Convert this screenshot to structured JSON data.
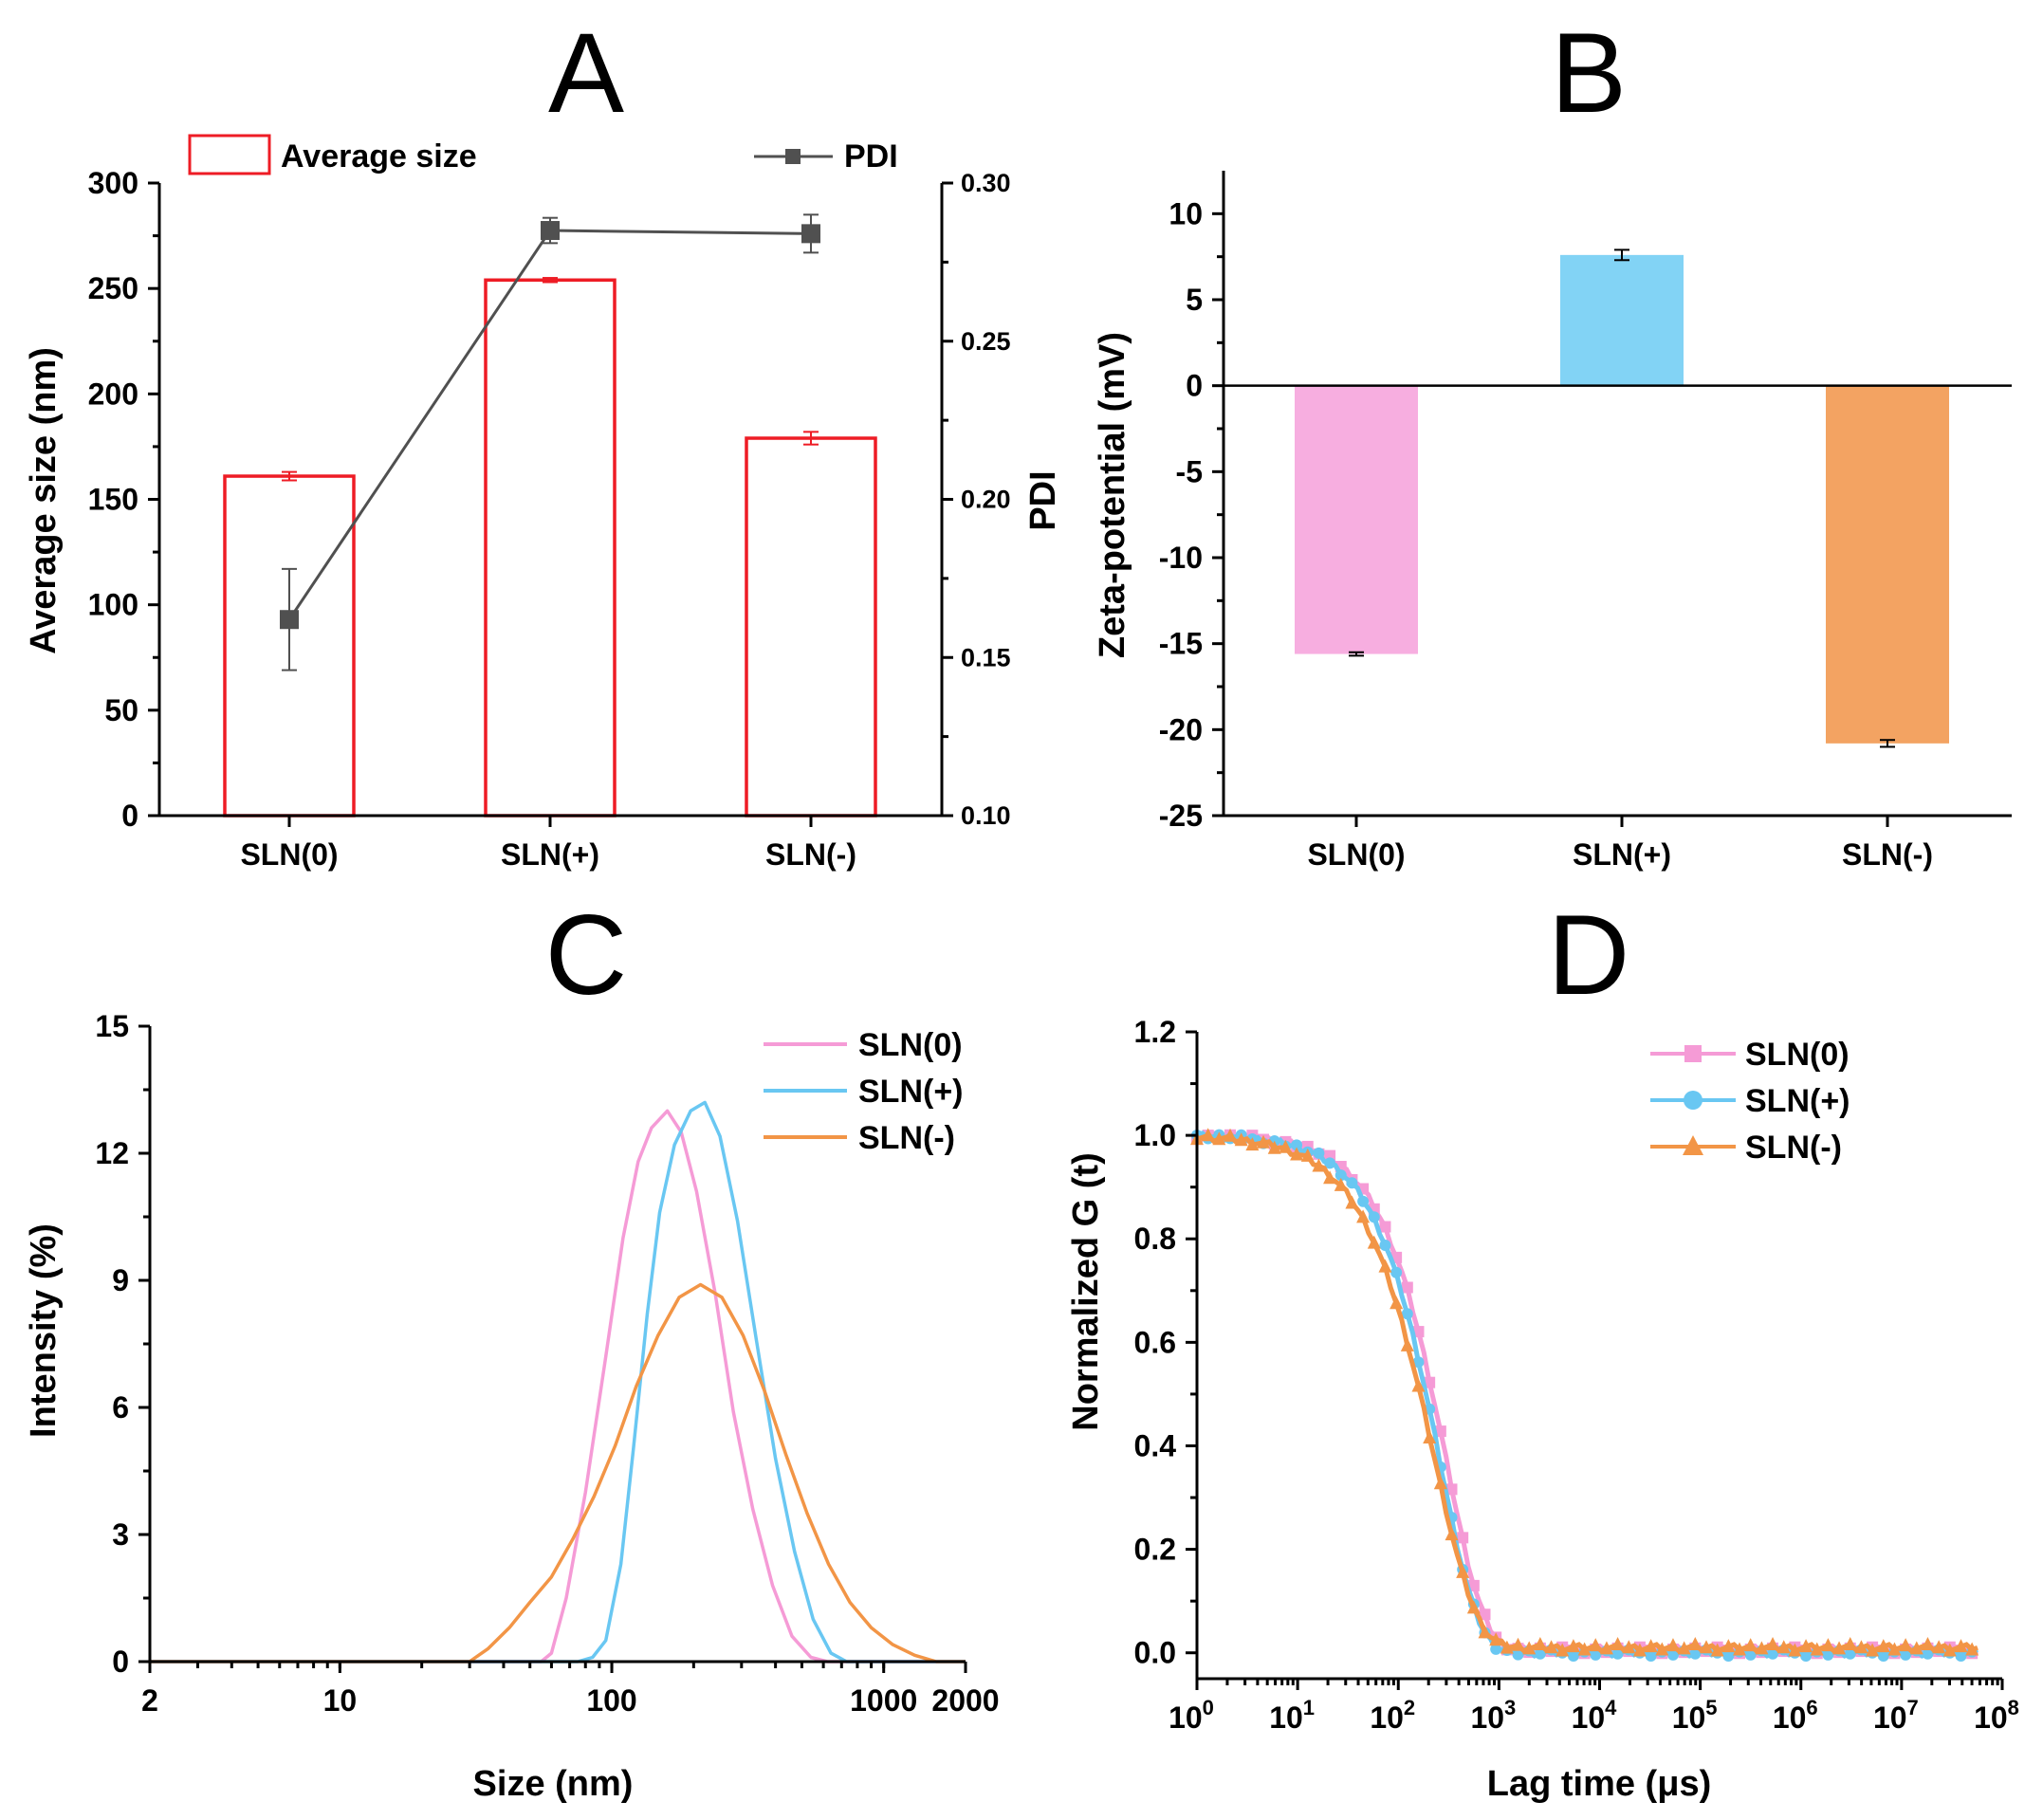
{
  "figure": {
    "panel_letters": [
      "A",
      "B",
      "C",
      "D"
    ]
  },
  "chart_data": [
    {
      "panel": "A",
      "type": "bar",
      "categories": [
        "SLN(0)",
        "SLN(+)",
        "SLN(-)"
      ],
      "bar_series": {
        "name": "Average size",
        "values": [
          161,
          254,
          179
        ],
        "errors": [
          2,
          1,
          3
        ],
        "color": "#ee1c25"
      },
      "line_series": {
        "name": "PDI",
        "values": [
          0.162,
          0.285,
          0.284
        ],
        "errors": [
          0.016,
          0.004,
          0.006
        ],
        "color": "#505050"
      },
      "ylabel": "Average size (nm)",
      "ylim": [
        0,
        300
      ],
      "yticks": [
        0,
        50,
        100,
        150,
        200,
        250,
        300
      ],
      "y2label": "PDI",
      "y2lim": [
        0.1,
        0.3
      ],
      "y2ticks": [
        "0.10",
        "0.15",
        "0.20",
        "0.25",
        "0.30"
      ],
      "legend": [
        "Average size",
        "PDI"
      ]
    },
    {
      "panel": "B",
      "type": "bar",
      "categories": [
        "SLN(0)",
        "SLN(+)",
        "SLN(-)"
      ],
      "values": [
        -15.6,
        7.6,
        -20.8
      ],
      "errors": [
        0.1,
        0.3,
        0.2
      ],
      "colors": [
        "#f7aee0",
        "#82d3f5",
        "#f3a362"
      ],
      "ylabel": "Zeta-potential (mV)",
      "ylim": [
        -25,
        12.5
      ],
      "yticks": [
        10,
        5,
        0,
        -5,
        -10,
        -15,
        -20,
        -25
      ]
    },
    {
      "panel": "C",
      "type": "line",
      "xscale": "log",
      "xlim": [
        2,
        2000
      ],
      "xticks": [
        2,
        10,
        100,
        1000,
        2000
      ],
      "xticklabels": [
        "2",
        "10",
        "100",
        "1000",
        "2000"
      ],
      "ylim": [
        0,
        15
      ],
      "yticks": [
        0,
        3,
        6,
        9,
        12,
        15
      ],
      "xlabel": "Size (nm)",
      "ylabel": "Intensity (%)",
      "series": [
        {
          "name": "SLN(0)",
          "color": "#f59bd6",
          "x": [
            2,
            55,
            60,
            68,
            80,
            95,
            110,
            125,
            140,
            160,
            180,
            205,
            240,
            280,
            330,
            390,
            460,
            540,
            620,
            2000
          ],
          "values": [
            0,
            0,
            0.2,
            1.5,
            4.0,
            7.2,
            10.0,
            11.8,
            12.6,
            13.0,
            12.5,
            11.1,
            8.7,
            5.9,
            3.6,
            1.8,
            0.6,
            0.1,
            0,
            0
          ]
        },
        {
          "name": "SLN(+)",
          "color": "#69c7f2",
          "x": [
            2,
            75,
            85,
            95,
            108,
            120,
            135,
            150,
            170,
            195,
            220,
            250,
            290,
            340,
            400,
            470,
            550,
            640,
            730,
            2000
          ],
          "values": [
            0,
            0,
            0.1,
            0.5,
            2.3,
            5.0,
            8.2,
            10.6,
            12.2,
            13.0,
            13.2,
            12.4,
            10.4,
            7.6,
            4.8,
            2.6,
            1.0,
            0.2,
            0,
            0
          ]
        },
        {
          "name": "SLN(-)",
          "color": "#f29546",
          "x": [
            2,
            30,
            35,
            42,
            50,
            60,
            72,
            86,
            103,
            123,
            148,
            177,
            212,
            254,
            304,
            364,
            436,
            523,
            627,
            751,
            900,
            1080,
            1300,
            1560,
            2000
          ],
          "values": [
            0,
            0,
            0.3,
            0.8,
            1.4,
            2.0,
            2.9,
            3.9,
            5.1,
            6.5,
            7.7,
            8.6,
            8.9,
            8.6,
            7.7,
            6.4,
            4.9,
            3.5,
            2.3,
            1.4,
            0.8,
            0.4,
            0.15,
            0,
            0
          ]
        }
      ],
      "legend": [
        "SLN(0)",
        "SLN(+)",
        "SLN(-)"
      ]
    },
    {
      "panel": "D",
      "type": "scatter",
      "xscale": "log",
      "xlim": [
        1,
        100000000
      ],
      "xtick_exponents": [
        0,
        1,
        2,
        3,
        4,
        5,
        6,
        7,
        8
      ],
      "xtick_base": "10",
      "ylim": [
        -0.05,
        1.2
      ],
      "yticks": [
        "0.0",
        "0.2",
        "0.4",
        "0.6",
        "0.8",
        "1.0",
        "1.2"
      ],
      "xlabel": "Lag time (μs)",
      "ylabel": "Normalized G (t)",
      "series": [
        {
          "name": "SLN(0)",
          "color": "#f59bd6",
          "marker": "square",
          "tau": 300,
          "beta": 1.15,
          "baseline": 0.005
        },
        {
          "name": "SLN(+)",
          "color": "#69c7f2",
          "marker": "circle",
          "tau": 260,
          "beta": 1.15,
          "baseline": 0.0
        },
        {
          "name": "SLN(-)",
          "color": "#f29546",
          "marker": "triangle",
          "tau": 230,
          "beta": 1.05,
          "baseline": 0.01
        }
      ],
      "legend": [
        "SLN(0)",
        "SLN(+)",
        "SLN(-)"
      ]
    }
  ]
}
